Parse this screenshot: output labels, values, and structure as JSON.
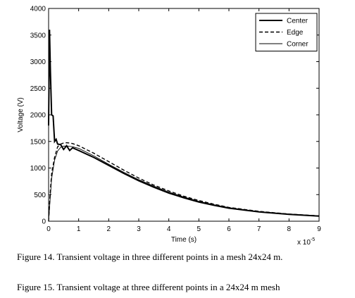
{
  "chart_data": {
    "type": "line",
    "title": "",
    "xlabel": "Time (s)",
    "ylabel": "Voltage (V)",
    "x_exponent_label": "x 10",
    "x_exponent_power": "-5",
    "xlim": [
      0,
      9
    ],
    "ylim": [
      0,
      4000
    ],
    "xticks": [
      0,
      1,
      2,
      3,
      4,
      5,
      6,
      7,
      8,
      9
    ],
    "yticks": [
      0,
      500,
      1000,
      1500,
      2000,
      2500,
      3000,
      3500,
      4000
    ],
    "grid": false,
    "legend": "top-right",
    "series": [
      {
        "name": "Center",
        "style": "solid-thick",
        "x": [
          0,
          0.03,
          0.06,
          0.1,
          0.15,
          0.2,
          0.25,
          0.3,
          0.4,
          0.5,
          0.6,
          0.7,
          0.8,
          1.0,
          1.5,
          2.0,
          2.5,
          3.0,
          3.5,
          4.0,
          4.5,
          5.0,
          5.5,
          6.0,
          7.0,
          8.0,
          9.0
        ],
        "y": [
          1800,
          3600,
          2800,
          2000,
          1980,
          1500,
          1540,
          1450,
          1440,
          1350,
          1420,
          1330,
          1380,
          1330,
          1200,
          1050,
          900,
          760,
          640,
          530,
          440,
          360,
          300,
          245,
          175,
          130,
          95
        ]
      },
      {
        "name": "Edge",
        "style": "dashed",
        "x": [
          0,
          0.05,
          0.1,
          0.2,
          0.3,
          0.4,
          0.5,
          0.6,
          0.7,
          0.8,
          1.0,
          1.5,
          2.0,
          2.5,
          3.0,
          3.5,
          4.0,
          4.5,
          5.0,
          5.5,
          6.0,
          7.0,
          8.0,
          9.0
        ],
        "y": [
          0,
          500,
          900,
          1200,
          1400,
          1450,
          1470,
          1475,
          1470,
          1460,
          1420,
          1280,
          1120,
          960,
          810,
          680,
          570,
          470,
          390,
          320,
          260,
          185,
          135,
          100
        ]
      },
      {
        "name": "Corner",
        "style": "solid-thin",
        "x": [
          0,
          0.05,
          0.1,
          0.2,
          0.3,
          0.4,
          0.5,
          0.6,
          0.8,
          1.0,
          1.5,
          2.0,
          2.5,
          3.0,
          3.5,
          4.0,
          4.5,
          5.0,
          5.5,
          6.0,
          7.0,
          8.0,
          9.0
        ],
        "y": [
          0,
          400,
          800,
          1150,
          1320,
          1390,
          1410,
          1415,
          1400,
          1370,
          1230,
          1070,
          920,
          780,
          660,
          550,
          455,
          375,
          310,
          255,
          180,
          130,
          95
        ]
      }
    ]
  },
  "captions": {
    "fig14": "Figure 14. Transient voltage in three different points in a mesh 24x24 m.",
    "fig15": "Figure 15. Transient voltage at three different points in a 24x24 m mesh"
  }
}
